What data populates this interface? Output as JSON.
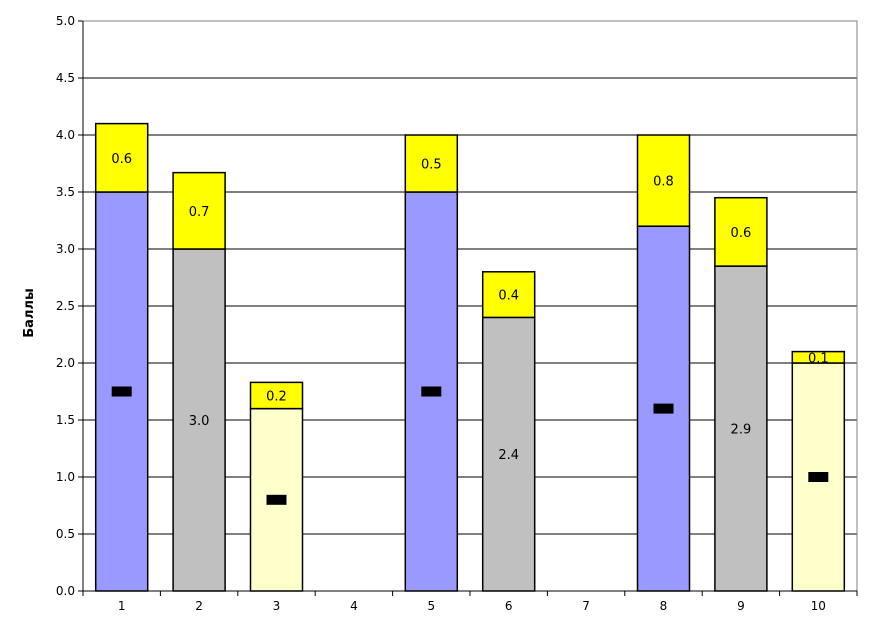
{
  "chart_data": {
    "type": "bar",
    "stacked": true,
    "ylabel": "Баллы",
    "xlabel": "",
    "ylim": [
      0,
      5
    ],
    "yticks": [
      "0.0",
      "0.5",
      "1.0",
      "1.5",
      "2.0",
      "2.5",
      "3.0",
      "3.5",
      "4.0",
      "4.5",
      "5.0"
    ],
    "categories": [
      "1",
      "2",
      "3",
      "4",
      "5",
      "6",
      "7",
      "8",
      "9",
      "10"
    ],
    "grid": true,
    "series": [
      {
        "color": "#9999ff",
        "values": [
          3.5,
          null,
          null,
          null,
          3.5,
          null,
          null,
          3.2,
          null,
          null
        ],
        "label_style": "black-box"
      },
      {
        "color": "#c0c0c0",
        "values": [
          null,
          3.0,
          null,
          null,
          null,
          2.4,
          null,
          null,
          2.85,
          null
        ],
        "labels": [
          null,
          "3.0",
          null,
          null,
          null,
          "2.4",
          null,
          null,
          "2.9",
          null
        ]
      },
      {
        "color": "#ffffcc",
        "values": [
          null,
          null,
          1.6,
          null,
          null,
          null,
          null,
          null,
          null,
          2.0
        ],
        "label_style": "black-box"
      },
      {
        "color": "#ffff00",
        "values": [
          0.6,
          0.67,
          0.23,
          null,
          0.5,
          0.4,
          null,
          0.8,
          0.6,
          0.1
        ],
        "labels": [
          "0.6",
          "0.7",
          "0.2",
          null,
          "0.5",
          "0.4",
          null,
          "0.8",
          "0.6",
          "0.1"
        ]
      }
    ]
  }
}
